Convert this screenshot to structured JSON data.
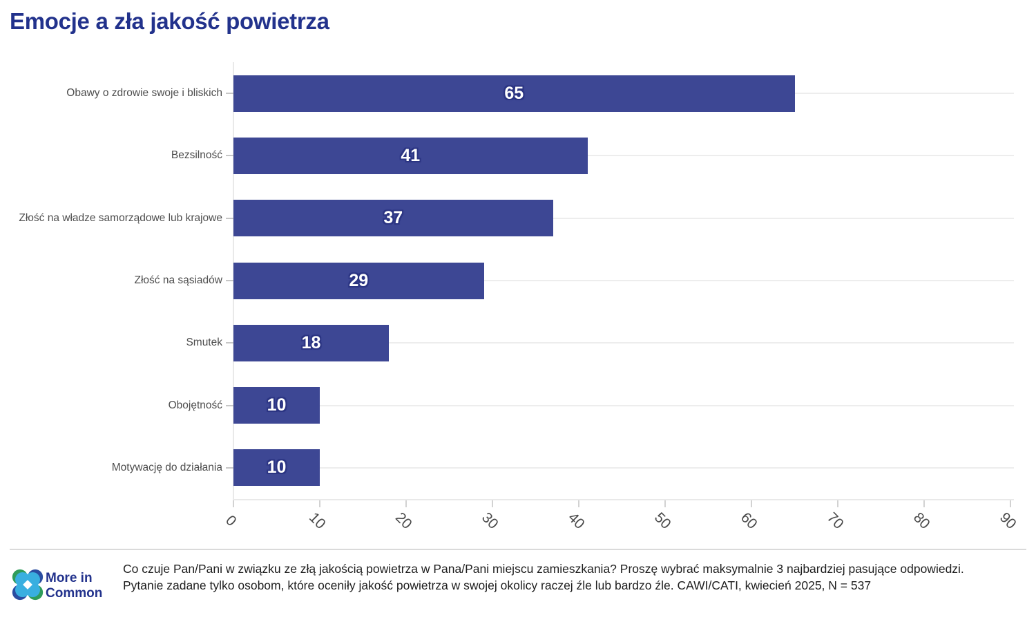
{
  "title": "Emocje a zła jakość powietrza",
  "chart_data": {
    "type": "bar",
    "orientation": "horizontal",
    "title": "Emocje a zła jakość powietrza",
    "categories": [
      "Obawy o zdrowie swoje i bliskich",
      "Bezsilność",
      "Złość na władze samorządowe lub krajowe",
      "Złość na sąsiadów",
      "Smutek",
      "Obojętność",
      "Motywację do działania"
    ],
    "values": [
      65,
      41,
      37,
      29,
      18,
      10,
      10
    ],
    "xlabel": "",
    "ylabel": "",
    "xlim": [
      0,
      90
    ],
    "xticks": [
      0,
      10,
      20,
      30,
      40,
      50,
      60,
      70,
      80,
      90
    ],
    "grid": "horizontal line per category, light gray, behind bars",
    "legend": "none",
    "bar_color": "#3d4794",
    "value_label_color": "#ffffff",
    "value_label_outline": "#2b3482"
  },
  "colors": {
    "title": "#22328c",
    "category_label": "#4d4d4d",
    "tick_label": "#4a4a4a",
    "gridline": "#ededed",
    "logo_green": "#2f9c5b",
    "logo_blue": "#2a4da1",
    "logo_cyan": "#39afe0",
    "logo_text": "#22328c"
  },
  "footer": {
    "logo": {
      "line1": "More in",
      "line2": "Common"
    },
    "question": "Co czuje Pan/Pani w związku ze złą jakością powietrza w Pana/Pani miejscu zamieszkania? Proszę wybrać maksymalnie 3 najbardziej pasujące odpowiedzi.",
    "note": "Pytanie zadane tylko osobom, które oceniły jakość powietrza w swojej okolicy raczej źle lub bardzo źle. CAWI/CATI, kwiecień 2025, N = 537"
  }
}
